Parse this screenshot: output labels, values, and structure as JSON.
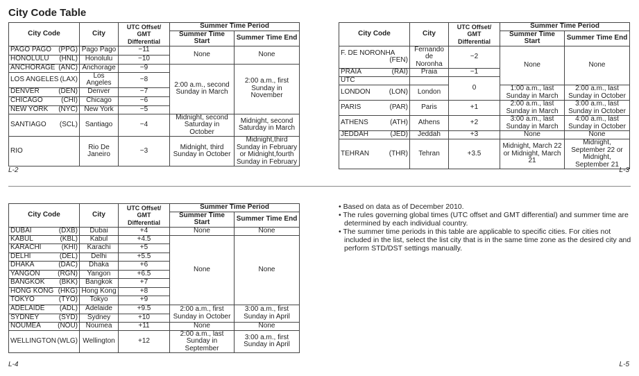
{
  "title": "City Code Table",
  "headers": {
    "city_code": "City Code",
    "city": "City",
    "offset": "UTC Offset/ GMT Differential",
    "period": "Summer Time Period",
    "start": "Summer Time Start",
    "end": "Summer Time End"
  },
  "tables": [
    {
      "page": "L-2",
      "rows": [
        {
          "name": "PAGO PAGO",
          "code": "(PPG)",
          "city": "Pago Pago",
          "offset": "−11",
          "start": "None",
          "end": "None",
          "span": 2
        },
        {
          "name": "HONOLULU",
          "code": "(HNL)",
          "city": "Honolulu",
          "offset": "−10"
        },
        {
          "name": "ANCHORAGE",
          "code": "(ANC)",
          "city": "Anchorage",
          "offset": "−9",
          "start": "2:00 a.m., second Sunday in March",
          "end": "2:00 a.m., first Sunday in November",
          "span": 5
        },
        {
          "name": "LOS ANGELES",
          "code": "(LAX)",
          "city": "Los Angeles",
          "offset": "−8"
        },
        {
          "name": "DENVER",
          "code": "(DEN)",
          "city": "Denver",
          "offset": "−7"
        },
        {
          "name": "CHICAGO",
          "code": "(CHI)",
          "city": "Chicago",
          "offset": "−6"
        },
        {
          "name": "NEW YORK",
          "code": "(NYC)",
          "city": "New York",
          "offset": "−5"
        },
        {
          "name": "SANTIAGO",
          "code": "(SCL)",
          "city": "Santiago",
          "offset": "−4",
          "start": "Midnight, second Saturday in October",
          "end": "Midnight, second Saturday in March",
          "span": 1
        },
        {
          "name": "RIO",
          "code": "",
          "city": "Rio De Janeiro",
          "offset": "−3",
          "start": "Midnight, third Sunday in October",
          "end": "Midnight,third Sunday in February or Midnight,fourth Sunday in February",
          "span": 1
        }
      ]
    },
    {
      "page": "L-3",
      "rows": [
        {
          "name": "F. DE NORONHA",
          "code": "(FEN)",
          "city": "Fernando de Noronha",
          "offset": "−2",
          "start": "None",
          "end": "None",
          "span": 3
        },
        {
          "name": "PRAIA",
          "code": "(RAI)",
          "city": "Praia",
          "offset": "−1"
        },
        {
          "name": "UTC",
          "code": "",
          "city": "",
          "offset": "0",
          "ospan": 2
        },
        {
          "name": "LONDON",
          "code": "(LON)",
          "city": "London",
          "start": "1:00 a.m., last Sunday in March",
          "end": "2:00 a.m., last Sunday in October",
          "span": 1
        },
        {
          "name": "PARIS",
          "code": "(PAR)",
          "city": "Paris",
          "offset": "+1",
          "start": "2:00 a.m., last Sunday in March",
          "end": "3:00 a.m., last Sunday in October",
          "span": 1
        },
        {
          "name": "ATHENS",
          "code": "(ATH)",
          "city": "Athens",
          "offset": "+2",
          "start": "3:00 a.m., last Sunday in March",
          "end": "4:00 a.m., last Sunday in October",
          "span": 1
        },
        {
          "name": "JEDDAH",
          "code": "(JED)",
          "city": "Jeddah",
          "offset": "+3",
          "start": "None",
          "end": "None",
          "span": 1
        },
        {
          "name": "TEHRAN",
          "code": "(THR)",
          "city": "Tehran",
          "offset": "+3.5",
          "start": "Midnight, March 22 or Midnight, March 21",
          "end": "Midnight, September 22 or Midnight, September 21",
          "span": 1
        }
      ]
    },
    {
      "page": "L-4",
      "rows": [
        {
          "name": "DUBAI",
          "code": "(DXB)",
          "city": "Dubai",
          "offset": "+4",
          "start": "None",
          "end": "None",
          "span": 1
        },
        {
          "name": "KABUL",
          "code": "(KBL)",
          "city": "Kabul",
          "offset": "+4.5",
          "start": "None",
          "end": "None",
          "span": 8
        },
        {
          "name": "KARACHI",
          "code": "(KHI)",
          "city": "Karachi",
          "offset": "+5"
        },
        {
          "name": "DELHI",
          "code": "(DEL)",
          "city": "Delhi",
          "offset": "+5.5"
        },
        {
          "name": "DHAKA",
          "code": "(DAC)",
          "city": "Dhaka",
          "offset": "+6"
        },
        {
          "name": "YANGON",
          "code": "(RGN)",
          "city": "Yangon",
          "offset": "+6.5"
        },
        {
          "name": "BANGKOK",
          "code": "(BKK)",
          "city": "Bangkok",
          "offset": "+7"
        },
        {
          "name": "HONG KONG",
          "code": "(HKG)",
          "city": "Hong Kong",
          "offset": "+8"
        },
        {
          "name": "TOKYO",
          "code": "(TYO)",
          "city": "Tokyo",
          "offset": "+9"
        },
        {
          "name": "ADELAIDE",
          "code": "(ADL)",
          "city": "Adelaide",
          "offset": "+9.5",
          "start": "2:00 a.m., first Sunday in October",
          "end": "3:00 a.m., first Sunday in April",
          "span": 2
        },
        {
          "name": "SYDNEY",
          "code": "(SYD)",
          "city": "Sydney",
          "offset": "+10"
        },
        {
          "name": "NOUMEA",
          "code": "(NOU)",
          "city": "Noumea",
          "offset": "+11",
          "start": "None",
          "end": "None",
          "span": 1
        },
        {
          "name": "WELLINGTON",
          "code": "(WLG)",
          "city": "Wellington",
          "offset": "+12",
          "start": "2:00 a.m., last Sunday in September",
          "end": "3:00 a.m., first Sunday in April",
          "span": 1
        }
      ]
    }
  ],
  "page_l5": "L-5",
  "notes": [
    "Based on data as of December 2010.",
    "The rules governing global times (UTC offset and GMT differential) and summer time are determined by each individual country.",
    "The summer time periods in this table are applicable to specific cities. For cities not included in the list, select the list city that is in the same time zone as the desired city and perform STD/DST settings manually."
  ]
}
